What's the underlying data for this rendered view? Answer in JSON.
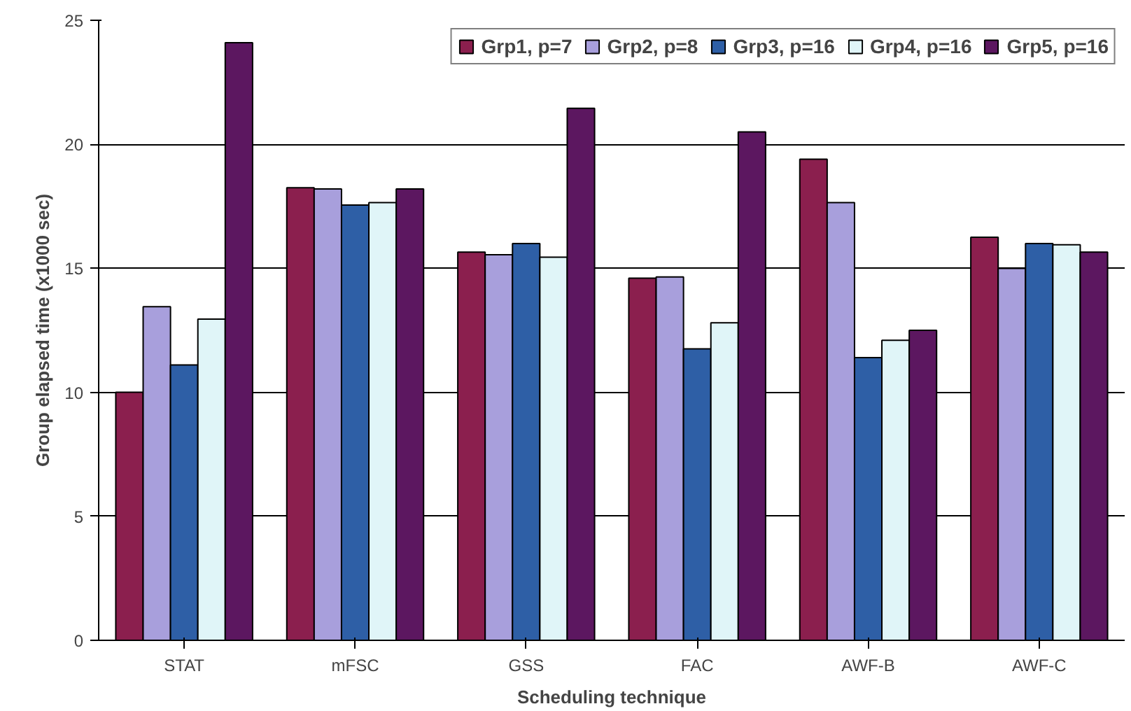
{
  "chart_data": {
    "type": "bar",
    "xlabel": "Scheduling technique",
    "ylabel": "Group elapsed time (x1000 sec)",
    "categories": [
      "STAT",
      "mFSC",
      "GSS",
      "FAC",
      "AWF-B",
      "AWF-C"
    ],
    "series": [
      {
        "name": "Grp1, p=7",
        "color": "#8b1f4e",
        "values": [
          10.0,
          18.25,
          15.65,
          14.6,
          19.4,
          16.25
        ]
      },
      {
        "name": "Grp2, p=8",
        "color": "#a89fdc",
        "values": [
          13.45,
          18.2,
          15.55,
          14.65,
          17.65,
          15.0
        ]
      },
      {
        "name": "Grp3, p=16",
        "color": "#2e5fa6",
        "values": [
          11.1,
          17.55,
          16.0,
          11.75,
          11.4,
          16.0
        ]
      },
      {
        "name": "Grp4, p=16",
        "color": "#e0f5f8",
        "values": [
          12.95,
          17.65,
          15.45,
          12.8,
          12.1,
          15.95
        ]
      },
      {
        "name": "Grp5, p=16",
        "color": "#5c1760",
        "values": [
          24.1,
          18.2,
          21.45,
          20.5,
          12.5,
          15.65
        ]
      }
    ],
    "ylim": [
      0,
      25
    ],
    "yticks": [
      0,
      5,
      10,
      15,
      20,
      25
    ],
    "grid": "y",
    "legend": "top right"
  }
}
